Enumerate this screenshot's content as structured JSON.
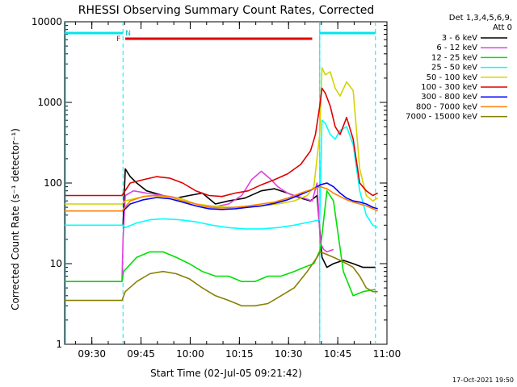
{
  "chart_data": {
    "type": "line",
    "title": "RHESSI Observing Summary Count Rates, Corrected",
    "xlabel": "Start Time (02-Jul-05 09:21:42)",
    "ylabel": "Corrected Count Rate (s⁻¹ detector⁻¹)",
    "ylog": true,
    "ylim": [
      1,
      10000
    ],
    "xlim_minutes": [
      0,
      98.3
    ],
    "y_ticks": [
      {
        "v": 1,
        "label": "1"
      },
      {
        "v": 10,
        "label": "10"
      },
      {
        "v": 100,
        "label": "100"
      },
      {
        "v": 1000,
        "label": "1000"
      },
      {
        "v": 10000,
        "label": "10000"
      }
    ],
    "x_ticks": [
      {
        "m": 8.3,
        "label": "09:30"
      },
      {
        "m": 23.3,
        "label": "09:45"
      },
      {
        "m": 38.3,
        "label": "10:00"
      },
      {
        "m": 53.3,
        "label": "10:15"
      },
      {
        "m": 68.3,
        "label": "10:30"
      },
      {
        "m": 83.3,
        "label": "10:45"
      },
      {
        "m": 98.3,
        "label": "11:00"
      }
    ],
    "legend_header": [
      "Det 1,3,4,5,6,9,",
      "Att 0"
    ],
    "legend_position": "right",
    "annotations": {
      "night_label": "N",
      "flare_label": "F",
      "night_intervals": [
        [
          0,
          17.8
        ],
        [
          77.8,
          94.8
        ]
      ],
      "flare_interval": [
        18.5,
        75.5
      ],
      "dashed_markers": [
        17.8,
        77.8,
        94.8
      ]
    },
    "series": [
      {
        "name": "3 - 6 keV",
        "color": "#000000",
        "x": [
          17.8,
          18.5,
          20,
          22,
          25,
          30,
          34,
          38,
          42,
          46,
          50,
          55,
          60,
          64,
          68,
          72,
          75,
          77,
          78.5,
          80,
          82,
          85,
          88,
          91,
          94.8
        ],
        "y": [
          30,
          150,
          120,
          100,
          80,
          70,
          65,
          70,
          75,
          55,
          60,
          65,
          80,
          85,
          75,
          65,
          60,
          70,
          12,
          9,
          10,
          11,
          10,
          9,
          9
        ]
      },
      {
        "name": "6 - 12 keV",
        "color": "#e040e0",
        "x": [
          0,
          10,
          17.5,
          17.8,
          18.5,
          21,
          25,
          30,
          35,
          40,
          45,
          50,
          54,
          57,
          60,
          63,
          65,
          68,
          70,
          73,
          75.5,
          77,
          78,
          79,
          80,
          82
        ],
        "y": [
          6,
          6,
          6,
          20,
          70,
          80,
          75,
          70,
          65,
          55,
          50,
          55,
          70,
          110,
          140,
          110,
          90,
          75,
          70,
          65,
          60,
          100,
          18,
          15,
          14,
          15
        ]
      },
      {
        "name": "12 - 25 keV",
        "color": "#00e000",
        "x": [
          0,
          10,
          17.5,
          18,
          22,
          26,
          30,
          34,
          38,
          42,
          46,
          50,
          54,
          58,
          62,
          66,
          70,
          73,
          76,
          78,
          80,
          82,
          85,
          88,
          91,
          94.8
        ],
        "y": [
          6,
          6,
          6,
          8,
          12,
          14,
          14,
          12,
          10,
          8,
          7,
          7,
          6,
          6,
          7,
          7,
          8,
          9,
          10,
          15,
          80,
          60,
          8,
          4,
          4.5,
          4.8
        ]
      },
      {
        "name": "25 - 50 keV",
        "color": "#00ffff",
        "x": [
          0,
          10,
          17.8,
          18.5,
          22,
          26,
          30,
          35,
          40,
          45,
          50,
          55,
          60,
          65,
          70,
          75,
          77.8,
          78.5,
          79.5,
          81,
          82.5,
          84,
          86,
          88,
          90,
          92,
          94,
          95.5
        ],
        "y": [
          30,
          30,
          30,
          28,
          32,
          35,
          36,
          35,
          33,
          30,
          28,
          27,
          27,
          28,
          30,
          33,
          35,
          600,
          550,
          400,
          350,
          450,
          500,
          300,
          80,
          40,
          30,
          28
        ]
      },
      {
        "name": "50 - 100 keV",
        "color": "#d4d400",
        "x": [
          0,
          10,
          17.5,
          18.5,
          22,
          26,
          30,
          35,
          40,
          45,
          50,
          55,
          60,
          65,
          70,
          74,
          76,
          77.8,
          78.5,
          79.5,
          81,
          82.5,
          84,
          86,
          88,
          90,
          92,
          94,
          95.5
        ],
        "y": [
          55,
          55,
          55,
          60,
          65,
          70,
          68,
          65,
          55,
          52,
          50,
          50,
          52,
          55,
          60,
          70,
          90,
          400,
          2700,
          2200,
          2400,
          1500,
          1200,
          1800,
          1400,
          150,
          70,
          60,
          65
        ]
      },
      {
        "name": "100 - 300 keV",
        "color": "#e00000",
        "x": [
          0,
          10,
          17.5,
          20,
          24,
          28,
          32,
          36,
          40,
          44,
          48,
          52,
          56,
          60,
          64,
          68,
          72,
          75,
          76.5,
          77.8,
          78.5,
          79.5,
          81,
          82.5,
          84,
          86,
          88,
          90,
          92,
          94,
          95.5
        ],
        "y": [
          70,
          70,
          70,
          100,
          110,
          120,
          115,
          100,
          80,
          70,
          68,
          75,
          80,
          95,
          110,
          130,
          170,
          250,
          400,
          900,
          1500,
          1300,
          900,
          500,
          400,
          650,
          350,
          100,
          80,
          70,
          75
        ]
      },
      {
        "name": "300 - 800 keV",
        "color": "#0000ff",
        "x": [
          17.8,
          20,
          24,
          28,
          32,
          36,
          40,
          44,
          48,
          52,
          56,
          60,
          64,
          68,
          72,
          76,
          78,
          80,
          82,
          84,
          86,
          88,
          90,
          92,
          94,
          95.5
        ],
        "y": [
          45,
          55,
          62,
          66,
          64,
          58,
          52,
          48,
          47,
          48,
          50,
          52,
          56,
          62,
          72,
          85,
          95,
          100,
          90,
          75,
          65,
          60,
          58,
          55,
          50,
          48
        ]
      },
      {
        "name": "800 - 7000 keV",
        "color": "#ff8000",
        "x": [
          0,
          10,
          17.5,
          20,
          24,
          28,
          32,
          36,
          40,
          44,
          48,
          52,
          56,
          60,
          64,
          68,
          72,
          76,
          78,
          80,
          82,
          84,
          86,
          88,
          90,
          92,
          94,
          95.5
        ],
        "y": [
          45,
          45,
          45,
          60,
          68,
          70,
          68,
          60,
          55,
          50,
          49,
          50,
          52,
          55,
          58,
          65,
          75,
          85,
          90,
          85,
          75,
          68,
          62,
          58,
          55,
          52,
          48,
          45
        ]
      },
      {
        "name": "7000 - 15000 keV",
        "color": "#888000",
        "x": [
          0,
          10,
          17.5,
          18.5,
          22,
          26,
          30,
          34,
          38,
          42,
          46,
          50,
          54,
          58,
          62,
          66,
          70,
          74,
          77,
          78,
          80,
          82,
          84,
          86,
          88,
          90,
          92,
          94,
          95.5
        ],
        "y": [
          3.5,
          3.5,
          3.5,
          4.5,
          6,
          7.5,
          8,
          7.5,
          6.5,
          5,
          4,
          3.5,
          3,
          3,
          3.2,
          4,
          5,
          8,
          12,
          14,
          13,
          12,
          11,
          10,
          9,
          7,
          5,
          4.5,
          4.5
        ]
      }
    ]
  },
  "footer_timestamp": "17-Oct-2021 19:50"
}
